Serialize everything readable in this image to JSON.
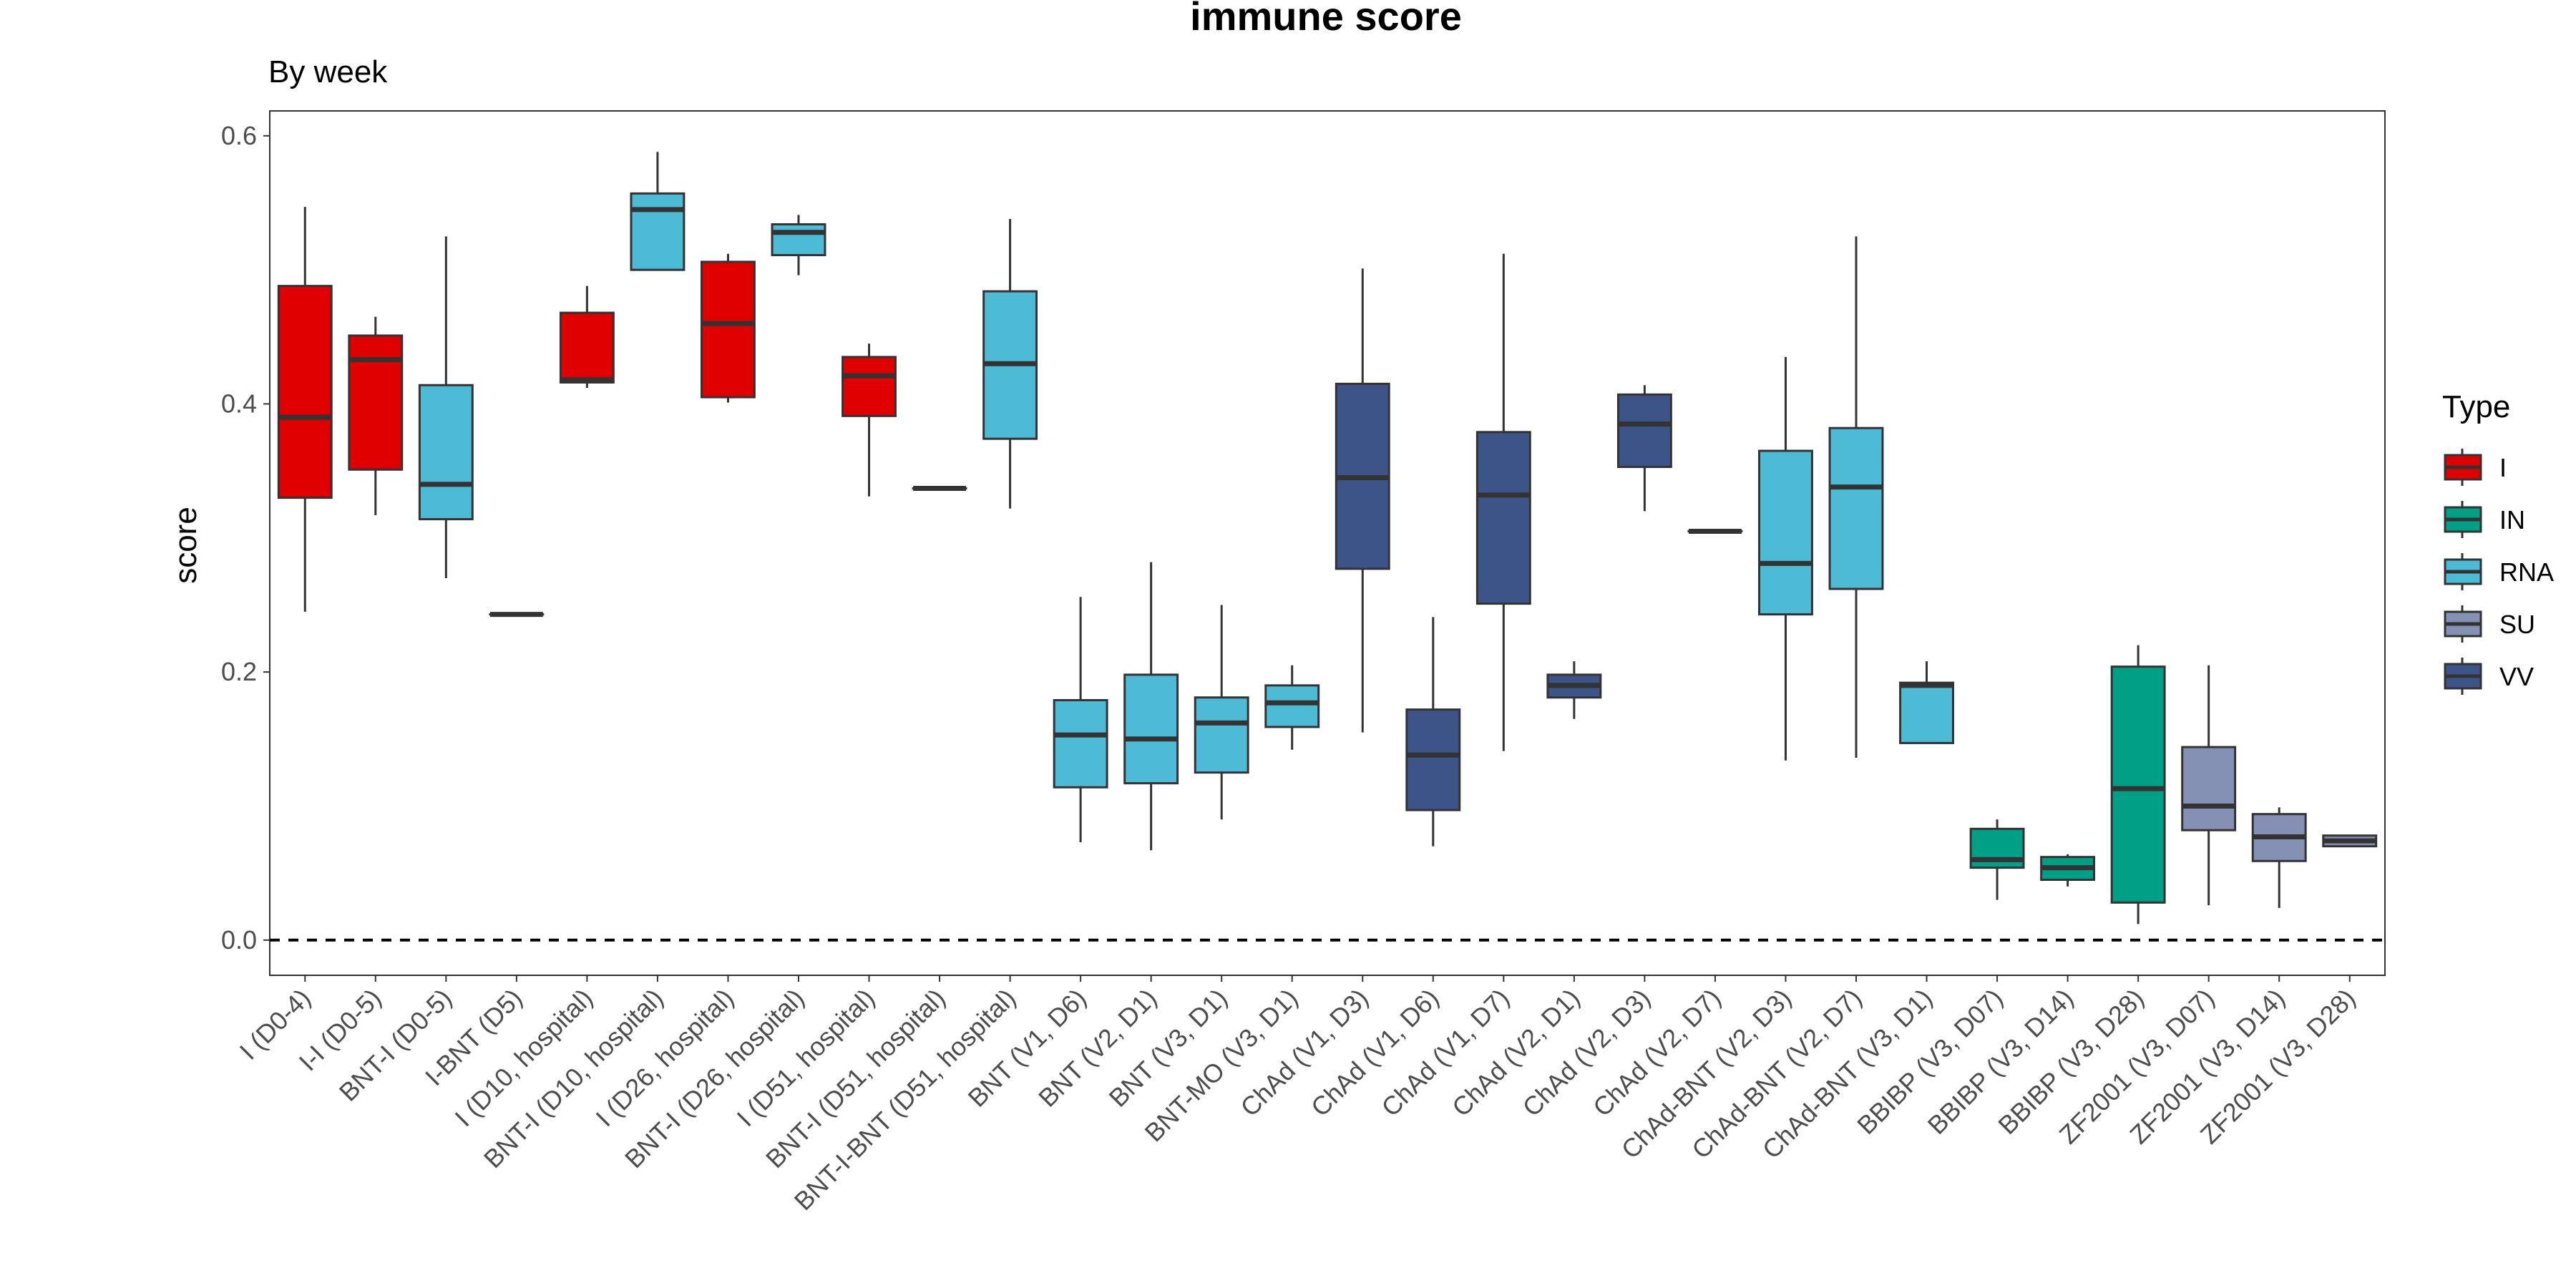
{
  "chart_data": {
    "type": "box",
    "title": "immune score",
    "subtitle": "By week",
    "ylabel": "score",
    "xlabel": "",
    "ylim": [
      -0.03,
      0.62
    ],
    "yticks": [
      0.0,
      0.2,
      0.4,
      0.6
    ],
    "ytick_labels": [
      "0.0",
      "0.2",
      "0.4",
      "0.6"
    ],
    "reference_line": 0.0,
    "grid": false,
    "legend": {
      "title": "Type",
      "placement": "right",
      "entries": [
        {
          "name": "I",
          "color": "#e00000"
        },
        {
          "name": "IN",
          "color": "#00a087"
        },
        {
          "name": "RNA",
          "color": "#4dbbd5"
        },
        {
          "name": "SU",
          "color": "#8491b4"
        },
        {
          "name": "VV",
          "color": "#3c5488"
        }
      ]
    },
    "categories": [
      "I (D0-4)",
      "I-I (D0-5)",
      "BNT-I (D0-5)",
      "I-BNT (D5)",
      "I (D10, hospital)",
      "BNT-I (D10, hospital)",
      "I (D26, hospital)",
      "BNT-I (D26, hospital)",
      "I (D51, hospital)",
      "BNT-I (D51, hospital)",
      "BNT-I-BNT (D51, hospital)",
      "BNT (V1, D6)",
      "BNT (V2, D1)",
      "BNT (V3, D1)",
      "BNT-MO (V3, D1)",
      "ChAd (V1, D3)",
      "ChAd (V1, D6)",
      "ChAd (V1, D7)",
      "ChAd (V2, D1)",
      "ChAd (V2, D3)",
      "ChAd (V2, D7)",
      "ChAd-BNT (V2, D3)",
      "ChAd-BNT (V2, D7)",
      "ChAd-BNT (V3, D1)",
      "BBIBP (V3, D07)",
      "BBIBP (V3, D14)",
      "BBIBP (V3, D28)",
      "ZF2001 (V3, D07)",
      "ZF2001 (V3, D14)",
      "ZF2001 (V3, D28)"
    ],
    "boxes": [
      {
        "type": "I",
        "min": 0.245,
        "q1": 0.33,
        "median": 0.39,
        "q3": 0.488,
        "max": 0.547
      },
      {
        "type": "I",
        "min": 0.317,
        "q1": 0.351,
        "median": 0.433,
        "q3": 0.451,
        "max": 0.465
      },
      {
        "type": "RNA",
        "min": 0.27,
        "q1": 0.314,
        "median": 0.34,
        "q3": 0.414,
        "max": 0.525
      },
      {
        "type": "RNA",
        "min": 0.243,
        "q1": 0.243,
        "median": 0.243,
        "q3": 0.243,
        "max": 0.243
      },
      {
        "type": "I",
        "min": 0.412,
        "q1": 0.416,
        "median": 0.418,
        "q3": 0.468,
        "max": 0.488
      },
      {
        "type": "RNA",
        "min": 0.5,
        "q1": 0.5,
        "median": 0.545,
        "q3": 0.557,
        "max": 0.588
      },
      {
        "type": "I",
        "min": 0.401,
        "q1": 0.405,
        "median": 0.46,
        "q3": 0.506,
        "max": 0.512
      },
      {
        "type": "RNA",
        "min": 0.496,
        "q1": 0.511,
        "median": 0.528,
        "q3": 0.534,
        "max": 0.541
      },
      {
        "type": "I",
        "min": 0.331,
        "q1": 0.391,
        "median": 0.421,
        "q3": 0.435,
        "max": 0.445
      },
      {
        "type": "RNA",
        "min": 0.337,
        "q1": 0.337,
        "median": 0.337,
        "q3": 0.337,
        "max": 0.337
      },
      {
        "type": "RNA",
        "min": 0.322,
        "q1": 0.374,
        "median": 0.43,
        "q3": 0.484,
        "max": 0.538
      },
      {
        "type": "RNA",
        "min": 0.073,
        "q1": 0.114,
        "median": 0.153,
        "q3": 0.179,
        "max": 0.256
      },
      {
        "type": "RNA",
        "min": 0.067,
        "q1": 0.117,
        "median": 0.15,
        "q3": 0.198,
        "max": 0.282
      },
      {
        "type": "RNA",
        "min": 0.09,
        "q1": 0.125,
        "median": 0.162,
        "q3": 0.181,
        "max": 0.25
      },
      {
        "type": "RNA",
        "min": 0.142,
        "q1": 0.159,
        "median": 0.177,
        "q3": 0.19,
        "max": 0.205
      },
      {
        "type": "VV",
        "min": 0.155,
        "q1": 0.277,
        "median": 0.345,
        "q3": 0.415,
        "max": 0.501
      },
      {
        "type": "VV",
        "min": 0.07,
        "q1": 0.097,
        "median": 0.138,
        "q3": 0.172,
        "max": 0.241
      },
      {
        "type": "VV",
        "min": 0.141,
        "q1": 0.251,
        "median": 0.332,
        "q3": 0.379,
        "max": 0.512
      },
      {
        "type": "VV",
        "min": 0.165,
        "q1": 0.181,
        "median": 0.19,
        "q3": 0.198,
        "max": 0.208
      },
      {
        "type": "VV",
        "min": 0.32,
        "q1": 0.353,
        "median": 0.385,
        "q3": 0.407,
        "max": 0.414
      },
      {
        "type": "VV",
        "min": 0.305,
        "q1": 0.305,
        "median": 0.305,
        "q3": 0.305,
        "max": 0.305
      },
      {
        "type": "RNA",
        "min": 0.134,
        "q1": 0.243,
        "median": 0.281,
        "q3": 0.365,
        "max": 0.435
      },
      {
        "type": "RNA",
        "min": 0.136,
        "q1": 0.262,
        "median": 0.338,
        "q3": 0.382,
        "max": 0.525
      },
      {
        "type": "RNA",
        "min": 0.147,
        "q1": 0.147,
        "median": 0.19,
        "q3": 0.192,
        "max": 0.208
      },
      {
        "type": "IN",
        "min": 0.03,
        "q1": 0.054,
        "median": 0.06,
        "q3": 0.083,
        "max": 0.09
      },
      {
        "type": "IN",
        "min": 0.04,
        "q1": 0.045,
        "median": 0.054,
        "q3": 0.062,
        "max": 0.064
      },
      {
        "type": "IN",
        "min": 0.012,
        "q1": 0.028,
        "median": 0.113,
        "q3": 0.204,
        "max": 0.22
      },
      {
        "type": "SU",
        "min": 0.026,
        "q1": 0.082,
        "median": 0.1,
        "q3": 0.144,
        "max": 0.205
      },
      {
        "type": "SU",
        "min": 0.024,
        "q1": 0.059,
        "median": 0.077,
        "q3": 0.094,
        "max": 0.099
      },
      {
        "type": "SU",
        "min": 0.07,
        "q1": 0.07,
        "median": 0.074,
        "q3": 0.078,
        "max": 0.078
      }
    ]
  }
}
